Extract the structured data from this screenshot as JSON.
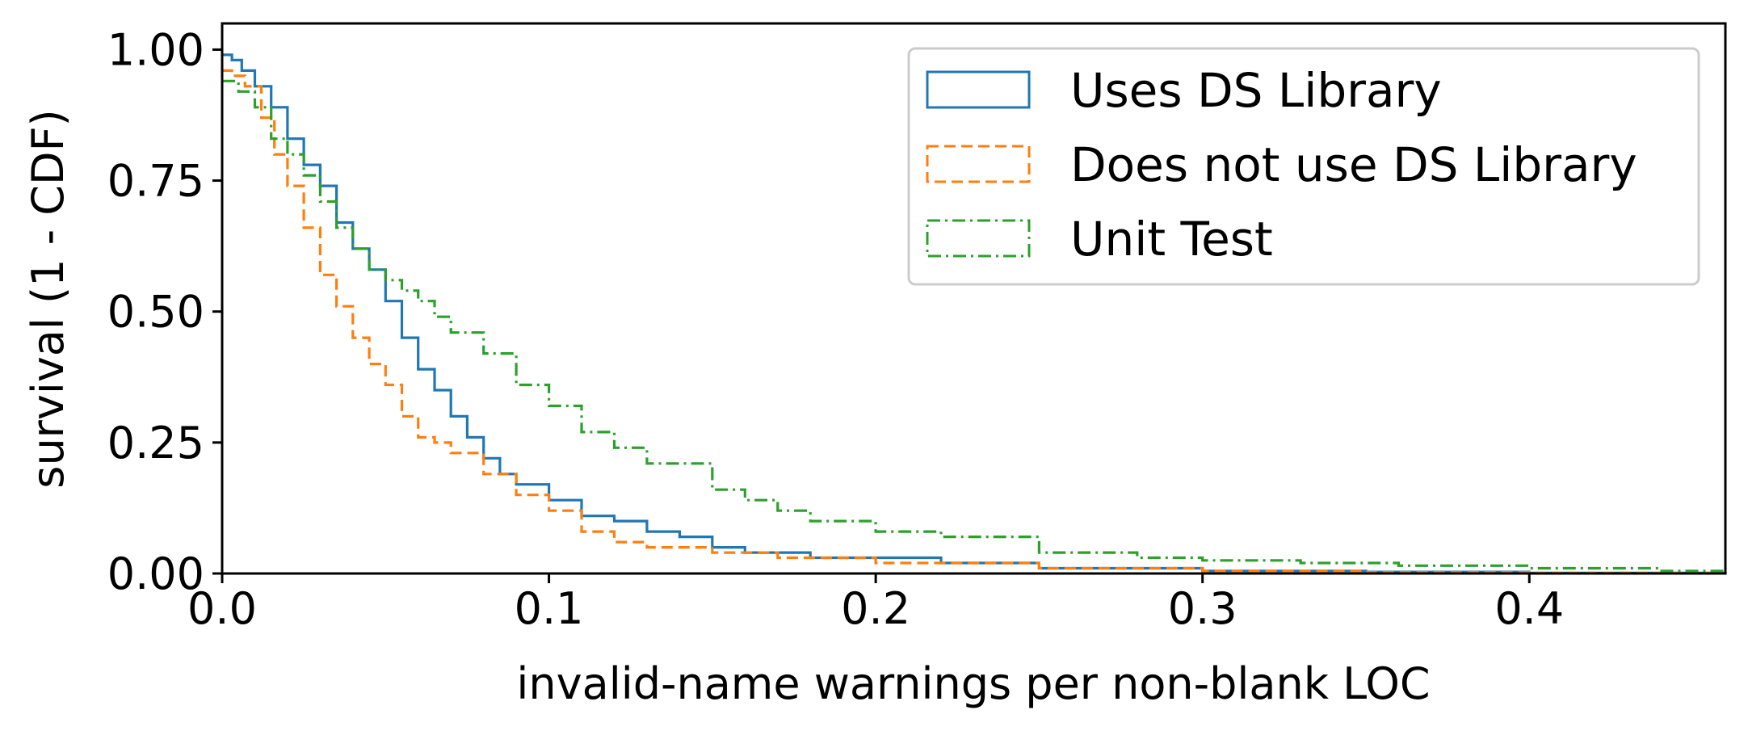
{
  "chart_data": {
    "type": "line",
    "step": true,
    "xlabel": "invalid-name warnings per non-blank LOC",
    "ylabel": "survival (1 - CDF)",
    "xlim": [
      0,
      0.46
    ],
    "ylim": [
      0,
      1.05
    ],
    "x_ticks": [
      0.0,
      0.1,
      0.2,
      0.3,
      0.4
    ],
    "x_tick_labels": [
      "0.0",
      "0.1",
      "0.2",
      "0.3",
      "0.4"
    ],
    "y_ticks": [
      0.0,
      0.25,
      0.5,
      0.75,
      1.0
    ],
    "y_tick_labels": [
      "0.00",
      "0.25",
      "0.50",
      "0.75",
      "1.00"
    ],
    "grid": false,
    "legend_position": "top-right",
    "series": [
      {
        "name": "Uses DS Library",
        "color": "#1f77b4",
        "dash": "solid",
        "x": [
          0,
          0.003,
          0.006,
          0.01,
          0.015,
          0.02,
          0.025,
          0.03,
          0.035,
          0.04,
          0.045,
          0.05,
          0.055,
          0.06,
          0.065,
          0.07,
          0.075,
          0.08,
          0.085,
          0.09,
          0.1,
          0.11,
          0.12,
          0.13,
          0.14,
          0.15,
          0.16,
          0.18,
          0.2,
          0.22,
          0.25,
          0.3,
          0.35,
          0.4,
          0.46
        ],
        "y": [
          0.99,
          0.98,
          0.96,
          0.93,
          0.89,
          0.83,
          0.78,
          0.74,
          0.67,
          0.62,
          0.58,
          0.52,
          0.45,
          0.39,
          0.35,
          0.3,
          0.26,
          0.22,
          0.19,
          0.17,
          0.14,
          0.11,
          0.1,
          0.08,
          0.07,
          0.05,
          0.04,
          0.03,
          0.03,
          0.02,
          0.01,
          0.005,
          0.003,
          0.001,
          0.0
        ]
      },
      {
        "name": "Does not use DS Library",
        "color": "#ff7f0e",
        "dash": "dashed",
        "x": [
          0,
          0.003,
          0.007,
          0.012,
          0.016,
          0.02,
          0.025,
          0.03,
          0.035,
          0.04,
          0.045,
          0.05,
          0.055,
          0.06,
          0.065,
          0.07,
          0.08,
          0.09,
          0.1,
          0.11,
          0.12,
          0.13,
          0.15,
          0.17,
          0.2,
          0.25,
          0.3,
          0.35,
          0.4,
          0.46
        ],
        "y": [
          0.96,
          0.95,
          0.93,
          0.87,
          0.8,
          0.74,
          0.66,
          0.57,
          0.51,
          0.45,
          0.4,
          0.36,
          0.3,
          0.26,
          0.25,
          0.23,
          0.19,
          0.15,
          0.12,
          0.08,
          0.06,
          0.05,
          0.04,
          0.03,
          0.02,
          0.01,
          0.005,
          0.002,
          0.001,
          0.0
        ]
      },
      {
        "name": "Unit Test",
        "color": "#2ca02c",
        "dash": "dashdot",
        "x": [
          0,
          0.005,
          0.01,
          0.015,
          0.02,
          0.025,
          0.03,
          0.035,
          0.04,
          0.045,
          0.05,
          0.055,
          0.06,
          0.065,
          0.07,
          0.08,
          0.09,
          0.1,
          0.11,
          0.12,
          0.13,
          0.15,
          0.16,
          0.17,
          0.18,
          0.2,
          0.22,
          0.25,
          0.28,
          0.3,
          0.33,
          0.36,
          0.4,
          0.44,
          0.46
        ],
        "y": [
          0.94,
          0.92,
          0.89,
          0.83,
          0.8,
          0.76,
          0.71,
          0.66,
          0.62,
          0.58,
          0.56,
          0.54,
          0.52,
          0.49,
          0.46,
          0.42,
          0.36,
          0.32,
          0.27,
          0.24,
          0.21,
          0.16,
          0.14,
          0.12,
          0.1,
          0.08,
          0.07,
          0.04,
          0.03,
          0.025,
          0.02,
          0.015,
          0.01,
          0.005,
          0.003
        ]
      }
    ]
  }
}
